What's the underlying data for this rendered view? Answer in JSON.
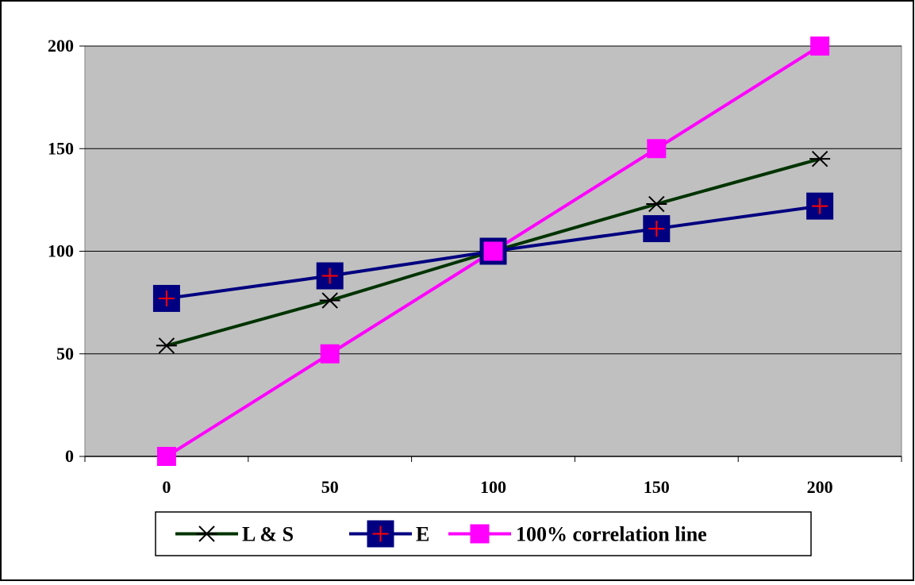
{
  "chart_data": {
    "type": "line",
    "title": "",
    "xlabel": "",
    "ylabel": "",
    "x_categories": [
      "0",
      "50",
      "100",
      "150",
      "200"
    ],
    "xlim": [
      -0.5,
      4.5
    ],
    "ylim": [
      0,
      200
    ],
    "y_ticks": [
      "0",
      "50",
      "100",
      "150",
      "200"
    ],
    "grid": "horizontal",
    "plot_background": "#c0c0c0",
    "legend_position": "bottom",
    "series": [
      {
        "name": "L & S",
        "marker": "asterisk",
        "line_color": "#003300",
        "marker_color": "#000000",
        "values": [
          54,
          76,
          100,
          123,
          145
        ]
      },
      {
        "name": "E",
        "marker": "square-plus",
        "line_color": "#000080",
        "marker_fill": "#000080",
        "marker_plus_color": "#ff0000",
        "values": [
          77,
          88,
          100,
          111,
          122
        ]
      },
      {
        "name": "100% correlation line",
        "marker": "square",
        "line_color": "#ff00ff",
        "marker_fill": "#ff00ff",
        "values": [
          0,
          50,
          100,
          150,
          200
        ]
      }
    ]
  }
}
